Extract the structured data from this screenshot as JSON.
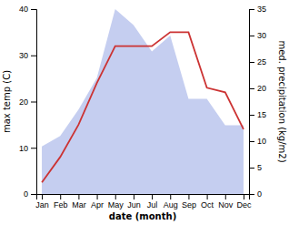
{
  "chart_data": {
    "type": "line",
    "xlabel": "date (month)",
    "ylabel": "max temp (C)",
    "y2label": "med. precipitation (kg/m2)",
    "categories": [
      "Jan",
      "Feb",
      "Mar",
      "Apr",
      "May",
      "Jun",
      "Jul",
      "Aug",
      "Sep",
      "Oct",
      "Nov",
      "Dec"
    ],
    "series": [
      {
        "type": "area",
        "axis": "y2",
        "color": "#c5cef0",
        "values": [
          9,
          11,
          16,
          22,
          35,
          32,
          27,
          30,
          18,
          18,
          13,
          13
        ]
      },
      {
        "type": "line",
        "color": "#cc3333",
        "values": [
          2.5,
          8,
          15,
          24,
          32,
          32,
          32,
          35,
          35,
          23,
          22,
          14
        ]
      }
    ],
    "ylim": [
      0,
      40
    ],
    "yticks": [
      0,
      10,
      20,
      30,
      40
    ],
    "y2lim": [
      0,
      35
    ],
    "y2ticks": [
      0,
      5,
      10,
      15,
      20,
      25,
      30,
      35
    ]
  }
}
